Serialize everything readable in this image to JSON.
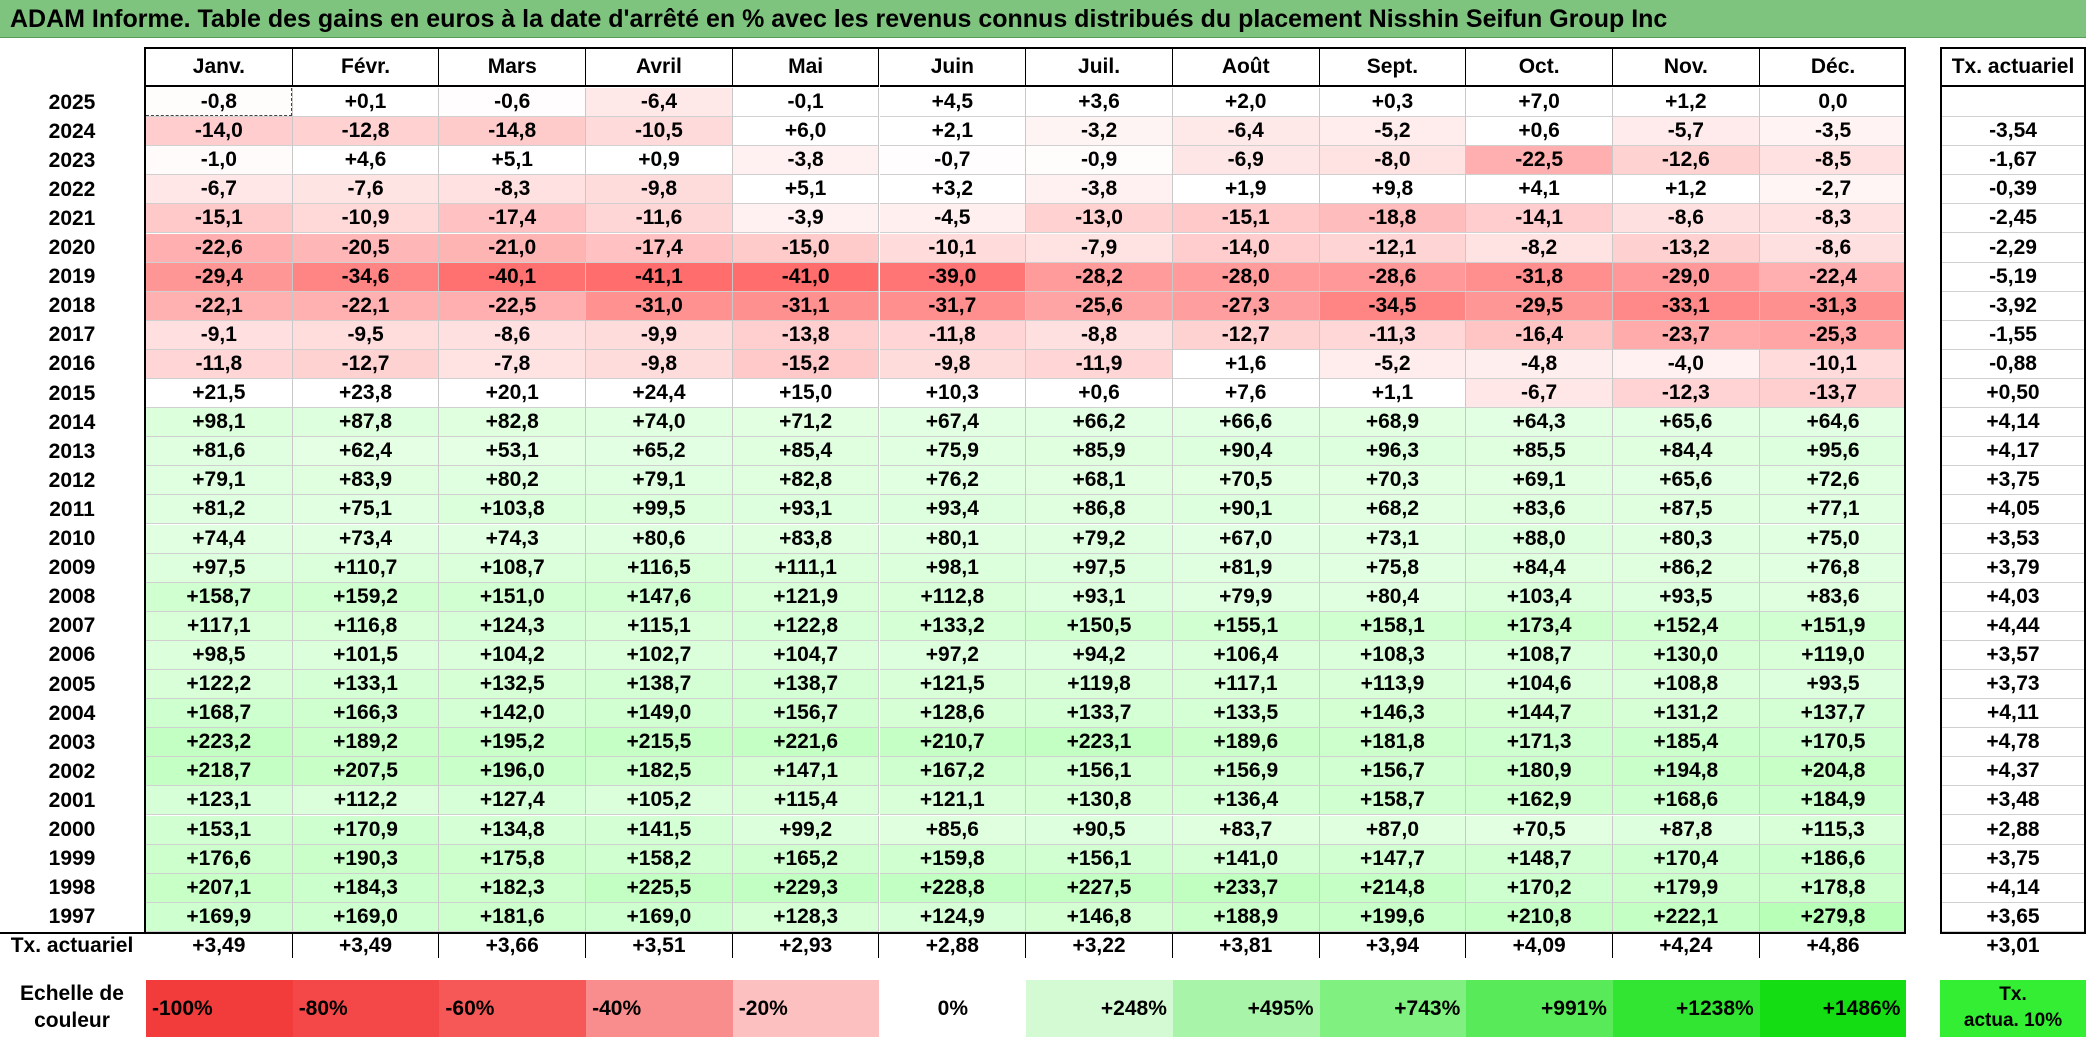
{
  "title": "ADAM Informe. Table des gains en euros à la date d'arrêté en % avec les revenus connus distribués du placement Nisshin Seifun Group Inc",
  "months": [
    "Janv.",
    "Févr.",
    "Mars",
    "Avril",
    "Mai",
    "Juin",
    "Juil.",
    "Août",
    "Sept.",
    "Oct.",
    "Nov.",
    "Déc."
  ],
  "annual_header": "Tx. actuariel",
  "rows": [
    {
      "year": "2025",
      "values": [
        "-0,8",
        "+0,1",
        "-0,6",
        "-6,4",
        "-0,1",
        "+4,5",
        "+3,6",
        "+2,0",
        "+0,3",
        "+7,0",
        "+1,2",
        "0,0"
      ],
      "rate": ""
    },
    {
      "year": "2024",
      "values": [
        "-14,0",
        "-12,8",
        "-14,8",
        "-10,5",
        "+6,0",
        "+2,1",
        "-3,2",
        "-6,4",
        "-5,2",
        "+0,6",
        "-5,7",
        "-3,5"
      ],
      "rate": "-3,54"
    },
    {
      "year": "2023",
      "values": [
        "-1,0",
        "+4,6",
        "+5,1",
        "+0,9",
        "-3,8",
        "-0,7",
        "-0,9",
        "-6,9",
        "-8,0",
        "-22,5",
        "-12,6",
        "-8,5"
      ],
      "rate": "-1,67"
    },
    {
      "year": "2022",
      "values": [
        "-6,7",
        "-7,6",
        "-8,3",
        "-9,8",
        "+5,1",
        "+3,2",
        "-3,8",
        "+1,9",
        "+9,8",
        "+4,1",
        "+1,2",
        "-2,7"
      ],
      "rate": "-0,39"
    },
    {
      "year": "2021",
      "values": [
        "-15,1",
        "-10,9",
        "-17,4",
        "-11,6",
        "-3,9",
        "-4,5",
        "-13,0",
        "-15,1",
        "-18,8",
        "-14,1",
        "-8,6",
        "-8,3"
      ],
      "rate": "-2,45"
    },
    {
      "year": "2020",
      "values": [
        "-22,6",
        "-20,5",
        "-21,0",
        "-17,4",
        "-15,0",
        "-10,1",
        "-7,9",
        "-14,0",
        "-12,1",
        "-8,2",
        "-13,2",
        "-8,6"
      ],
      "rate": "-2,29"
    },
    {
      "year": "2019",
      "values": [
        "-29,4",
        "-34,6",
        "-40,1",
        "-41,1",
        "-41,0",
        "-39,0",
        "-28,2",
        "-28,0",
        "-28,6",
        "-31,8",
        "-29,0",
        "-22,4"
      ],
      "rate": "-5,19"
    },
    {
      "year": "2018",
      "values": [
        "-22,1",
        "-22,1",
        "-22,5",
        "-31,0",
        "-31,1",
        "-31,7",
        "-25,6",
        "-27,3",
        "-34,5",
        "-29,5",
        "-33,1",
        "-31,3"
      ],
      "rate": "-3,92"
    },
    {
      "year": "2017",
      "values": [
        "-9,1",
        "-9,5",
        "-8,6",
        "-9,9",
        "-13,8",
        "-11,8",
        "-8,8",
        "-12,7",
        "-11,3",
        "-16,4",
        "-23,7",
        "-25,3"
      ],
      "rate": "-1,55"
    },
    {
      "year": "2016",
      "values": [
        "-11,8",
        "-12,7",
        "-7,8",
        "-9,8",
        "-15,2",
        "-9,8",
        "-11,9",
        "+1,6",
        "-5,2",
        "-4,8",
        "-4,0",
        "-10,1"
      ],
      "rate": "-0,88"
    },
    {
      "year": "2015",
      "values": [
        "+21,5",
        "+23,8",
        "+20,1",
        "+24,4",
        "+15,0",
        "+10,3",
        "+0,6",
        "+7,6",
        "+1,1",
        "-6,7",
        "-12,3",
        "-13,7"
      ],
      "rate": "+0,50"
    },
    {
      "year": "2014",
      "values": [
        "+98,1",
        "+87,8",
        "+82,8",
        "+74,0",
        "+71,2",
        "+67,4",
        "+66,2",
        "+66,6",
        "+68,9",
        "+64,3",
        "+65,6",
        "+64,6"
      ],
      "rate": "+4,14"
    },
    {
      "year": "2013",
      "values": [
        "+81,6",
        "+62,4",
        "+53,1",
        "+65,2",
        "+85,4",
        "+75,9",
        "+85,9",
        "+90,4",
        "+96,3",
        "+85,5",
        "+84,4",
        "+95,6"
      ],
      "rate": "+4,17"
    },
    {
      "year": "2012",
      "values": [
        "+79,1",
        "+83,9",
        "+80,2",
        "+79,1",
        "+82,8",
        "+76,2",
        "+68,1",
        "+70,5",
        "+70,3",
        "+69,1",
        "+65,6",
        "+72,6"
      ],
      "rate": "+3,75"
    },
    {
      "year": "2011",
      "values": [
        "+81,2",
        "+75,1",
        "+103,8",
        "+99,5",
        "+93,1",
        "+93,4",
        "+86,8",
        "+90,1",
        "+68,2",
        "+83,6",
        "+87,5",
        "+77,1"
      ],
      "rate": "+4,05"
    },
    {
      "year": "2010",
      "values": [
        "+74,4",
        "+73,4",
        "+74,3",
        "+80,6",
        "+83,8",
        "+80,1",
        "+79,2",
        "+67,0",
        "+73,1",
        "+88,0",
        "+80,3",
        "+75,0"
      ],
      "rate": "+3,53"
    },
    {
      "year": "2009",
      "values": [
        "+97,5",
        "+110,7",
        "+108,7",
        "+116,5",
        "+111,1",
        "+98,1",
        "+97,5",
        "+81,9",
        "+75,8",
        "+84,4",
        "+86,2",
        "+76,8"
      ],
      "rate": "+3,79"
    },
    {
      "year": "2008",
      "values": [
        "+158,7",
        "+159,2",
        "+151,0",
        "+147,6",
        "+121,9",
        "+112,8",
        "+93,1",
        "+79,9",
        "+80,4",
        "+103,4",
        "+93,5",
        "+83,6"
      ],
      "rate": "+4,03"
    },
    {
      "year": "2007",
      "values": [
        "+117,1",
        "+116,8",
        "+124,3",
        "+115,1",
        "+122,8",
        "+133,2",
        "+150,5",
        "+155,1",
        "+158,1",
        "+173,4",
        "+152,4",
        "+151,9"
      ],
      "rate": "+4,44"
    },
    {
      "year": "2006",
      "values": [
        "+98,5",
        "+101,5",
        "+104,2",
        "+102,7",
        "+104,7",
        "+97,2",
        "+94,2",
        "+106,4",
        "+108,3",
        "+108,7",
        "+130,0",
        "+119,0"
      ],
      "rate": "+3,57"
    },
    {
      "year": "2005",
      "values": [
        "+122,2",
        "+133,1",
        "+132,5",
        "+138,7",
        "+138,7",
        "+121,5",
        "+119,8",
        "+117,1",
        "+113,9",
        "+104,6",
        "+108,8",
        "+93,5"
      ],
      "rate": "+3,73"
    },
    {
      "year": "2004",
      "values": [
        "+168,7",
        "+166,3",
        "+142,0",
        "+149,0",
        "+156,7",
        "+128,6",
        "+133,7",
        "+133,5",
        "+146,3",
        "+144,7",
        "+131,2",
        "+137,7"
      ],
      "rate": "+4,11"
    },
    {
      "year": "2003",
      "values": [
        "+223,2",
        "+189,2",
        "+195,2",
        "+215,5",
        "+221,6",
        "+210,7",
        "+223,1",
        "+189,6",
        "+181,8",
        "+171,3",
        "+185,4",
        "+170,5"
      ],
      "rate": "+4,78"
    },
    {
      "year": "2002",
      "values": [
        "+218,7",
        "+207,5",
        "+196,0",
        "+182,5",
        "+147,1",
        "+167,2",
        "+156,1",
        "+156,9",
        "+156,7",
        "+180,9",
        "+194,8",
        "+204,8"
      ],
      "rate": "+4,37"
    },
    {
      "year": "2001",
      "values": [
        "+123,1",
        "+112,2",
        "+127,4",
        "+105,2",
        "+115,4",
        "+121,1",
        "+130,8",
        "+136,4",
        "+158,7",
        "+162,9",
        "+168,6",
        "+184,9"
      ],
      "rate": "+3,48"
    },
    {
      "year": "2000",
      "values": [
        "+153,1",
        "+170,9",
        "+134,8",
        "+141,5",
        "+99,2",
        "+85,6",
        "+90,5",
        "+83,7",
        "+87,0",
        "+70,5",
        "+87,8",
        "+115,3"
      ],
      "rate": "+2,88"
    },
    {
      "year": "1999",
      "values": [
        "+176,6",
        "+190,3",
        "+175,8",
        "+158,2",
        "+165,2",
        "+159,8",
        "+156,1",
        "+141,0",
        "+147,7",
        "+148,7",
        "+170,4",
        "+186,6"
      ],
      "rate": "+3,75"
    },
    {
      "year": "1998",
      "values": [
        "+207,1",
        "+184,3",
        "+182,3",
        "+225,5",
        "+229,3",
        "+228,8",
        "+227,5",
        "+233,7",
        "+214,8",
        "+170,2",
        "+179,9",
        "+178,8"
      ],
      "rate": "+4,14"
    },
    {
      "year": "1997",
      "values": [
        "+169,9",
        "+169,0",
        "+181,6",
        "+169,0",
        "+128,3",
        "+124,9",
        "+146,8",
        "+188,9",
        "+199,6",
        "+210,8",
        "+222,1",
        "+279,8"
      ],
      "rate": "+3,65"
    }
  ],
  "footer": {
    "label": "Tx. actuariel",
    "values": [
      "+3,49",
      "+3,49",
      "+3,66",
      "+3,51",
      "+2,93",
      "+2,88",
      "+3,22",
      "+3,81",
      "+3,94",
      "+4,09",
      "+4,24",
      "+4,86"
    ],
    "total": "+3,01"
  },
  "scale": {
    "label_line1": "Echelle de",
    "label_line2": "couleur",
    "items": [
      {
        "text": "-100%",
        "color": "#f23c3c",
        "align": "left"
      },
      {
        "text": "-80%",
        "color": "#f44848",
        "align": "left"
      },
      {
        "text": "-60%",
        "color": "#f65858",
        "align": "left"
      },
      {
        "text": "-40%",
        "color": "#f98c8c",
        "align": "left"
      },
      {
        "text": "-20%",
        "color": "#fcc0c0",
        "align": "left"
      },
      {
        "text": "0%",
        "color": "#ffffff",
        "align": "center"
      },
      {
        "text": "+248%",
        "color": "#d4fad4",
        "align": "right"
      },
      {
        "text": "+495%",
        "color": "#a8f4a8",
        "align": "right"
      },
      {
        "text": "+743%",
        "color": "#80f080",
        "align": "right"
      },
      {
        "text": "+991%",
        "color": "#58ea58",
        "align": "right"
      },
      {
        "text": "+1238%",
        "color": "#33e533",
        "align": "right"
      },
      {
        "text": "+1486%",
        "color": "#14dd14",
        "align": "right"
      }
    ],
    "legend_line1": "Tx.",
    "legend_line2": "actua. 10%",
    "legend_color": "#33ee33"
  }
}
